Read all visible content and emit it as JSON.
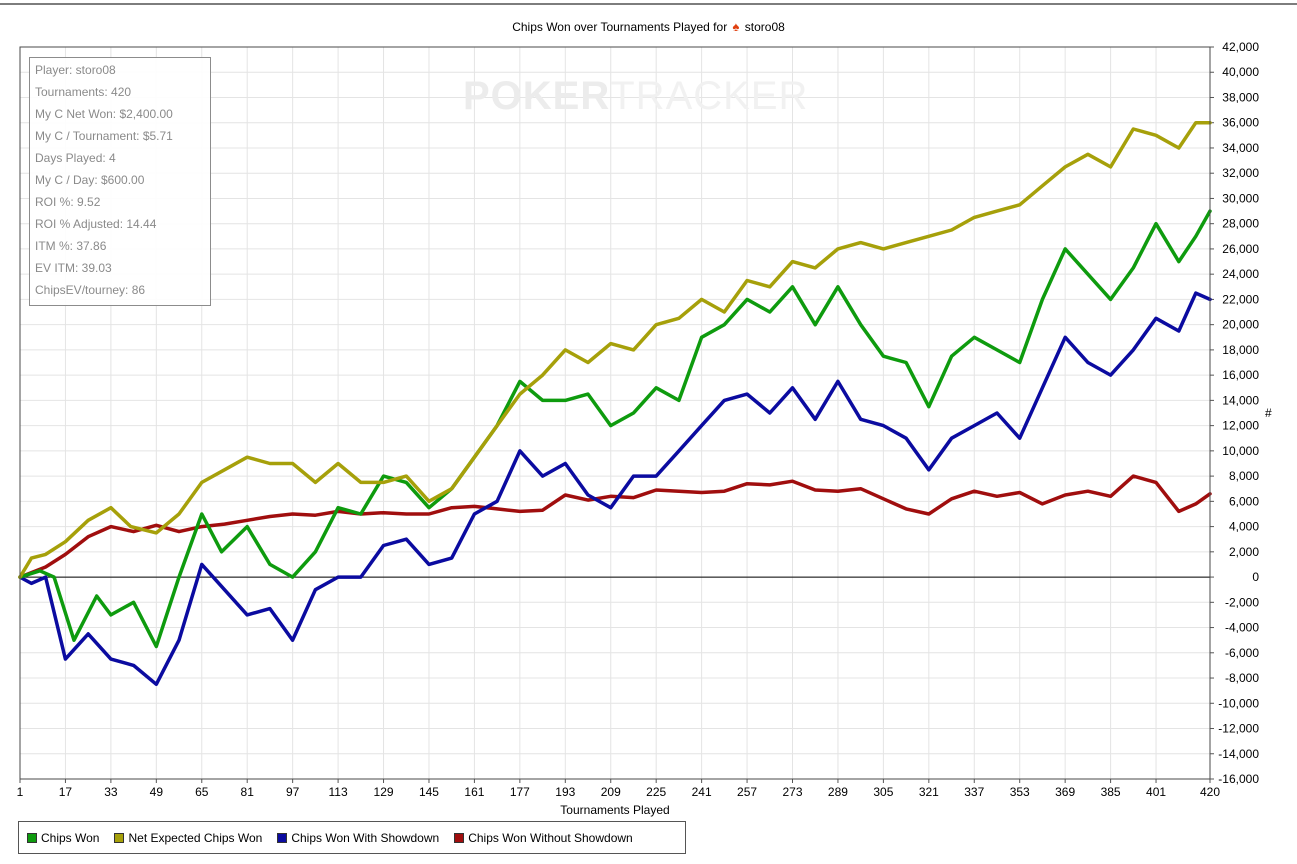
{
  "header": {
    "title": "Chips Won over Tournaments Played for",
    "player": "storo08",
    "icon": "spade-icon"
  },
  "watermark": {
    "bold": "POKER",
    "light": "TRACKER"
  },
  "stats": [
    "Player: storo08",
    "Tournaments: 420",
    "My C Net Won: $2,400.00",
    "My C / Tournament: $5.71",
    "Days Played: 4",
    "My C / Day: $600.00",
    "ROI %: 9.52",
    "ROI % Adjusted: 14.44",
    "ITM %: 37.86",
    "EV ITM: 39.03",
    "ChipsEV/tourney: 86"
  ],
  "chart_data": {
    "type": "line",
    "xlabel": "Tournaments Played",
    "ylabel": "#",
    "xlim": [
      1,
      420
    ],
    "ylim": [
      -16000,
      42000
    ],
    "y_axis_side": "right",
    "grid": true,
    "legend_position": "bottom-left",
    "x_ticks": [
      1,
      17,
      33,
      49,
      65,
      81,
      97,
      113,
      129,
      145,
      161,
      177,
      193,
      209,
      225,
      241,
      257,
      273,
      289,
      305,
      321,
      337,
      353,
      369,
      385,
      401,
      420
    ],
    "y_ticks": [
      -16000,
      -14000,
      -12000,
      -10000,
      -8000,
      -6000,
      -4000,
      -2000,
      0,
      2000,
      4000,
      6000,
      8000,
      10000,
      12000,
      14000,
      16000,
      18000,
      20000,
      22000,
      24000,
      26000,
      28000,
      30000,
      32000,
      34000,
      36000,
      38000,
      40000,
      42000
    ],
    "series": [
      {
        "name": "Net Expected Chips Won",
        "color": "#a6a00a",
        "x": [
          1,
          5,
          10,
          17,
          25,
          33,
          40,
          49,
          57,
          65,
          73,
          81,
          89,
          97,
          105,
          113,
          121,
          129,
          137,
          145,
          153,
          161,
          169,
          177,
          185,
          193,
          201,
          209,
          217,
          225,
          233,
          241,
          249,
          257,
          265,
          273,
          281,
          289,
          297,
          305,
          313,
          321,
          329,
          337,
          345,
          353,
          361,
          369,
          377,
          385,
          393,
          401,
          409,
          415,
          420
        ],
        "values": [
          0,
          1500,
          1800,
          2800,
          4500,
          5500,
          4000,
          3500,
          5000,
          7500,
          8500,
          9500,
          9000,
          9000,
          7500,
          9000,
          7500,
          7500,
          8000,
          6000,
          7000,
          9500,
          12000,
          14500,
          16000,
          18000,
          17000,
          18500,
          18000,
          20000,
          20500,
          22000,
          21000,
          23500,
          23000,
          25000,
          24500,
          26000,
          26500,
          26000,
          26500,
          27000,
          27500,
          28500,
          29000,
          29500,
          31000,
          32500,
          33500,
          32500,
          35500,
          35000,
          34000,
          36000,
          36000
        ]
      },
      {
        "name": "Chips Won",
        "color": "#0e9b0e",
        "x": [
          1,
          8,
          13,
          20,
          28,
          33,
          41,
          49,
          57,
          65,
          72,
          81,
          89,
          97,
          105,
          113,
          121,
          129,
          137,
          145,
          153,
          161,
          169,
          177,
          185,
          193,
          201,
          209,
          217,
          225,
          233,
          241,
          249,
          257,
          265,
          273,
          281,
          289,
          297,
          305,
          313,
          321,
          329,
          337,
          345,
          353,
          361,
          369,
          377,
          385,
          393,
          401,
          409,
          415,
          420
        ],
        "values": [
          0,
          500,
          0,
          -5000,
          -1500,
          -3000,
          -2000,
          -5500,
          0,
          5000,
          2000,
          4000,
          1000,
          0,
          2000,
          5500,
          5000,
          8000,
          7500,
          5500,
          7000,
          9500,
          12000,
          15500,
          14000,
          14000,
          14500,
          12000,
          13000,
          15000,
          14000,
          19000,
          20000,
          22000,
          21000,
          23000,
          20000,
          23000,
          20000,
          17500,
          17000,
          13500,
          17500,
          19000,
          18000,
          17000,
          22000,
          26000,
          24000,
          22000,
          24500,
          28000,
          25000,
          27000,
          29000
        ]
      },
      {
        "name": "Chips Won With Showdown",
        "color": "#0b0ba0",
        "x": [
          1,
          5,
          10,
          17,
          25,
          33,
          41,
          49,
          57,
          65,
          73,
          81,
          89,
          97,
          105,
          113,
          121,
          129,
          137,
          145,
          153,
          161,
          169,
          177,
          185,
          193,
          201,
          209,
          217,
          225,
          233,
          241,
          249,
          257,
          265,
          273,
          281,
          289,
          297,
          305,
          313,
          321,
          329,
          337,
          345,
          353,
          361,
          369,
          377,
          385,
          393,
          401,
          409,
          415,
          420
        ],
        "values": [
          0,
          -500,
          0,
          -6500,
          -4500,
          -6500,
          -7000,
          -8500,
          -5000,
          1000,
          -1000,
          -3000,
          -2500,
          -5000,
          -1000,
          0,
          0,
          2500,
          3000,
          1000,
          1500,
          5000,
          6000,
          10000,
          8000,
          9000,
          6500,
          5500,
          8000,
          8000,
          10000,
          12000,
          14000,
          14500,
          13000,
          15000,
          12500,
          15500,
          12500,
          12000,
          11000,
          8500,
          11000,
          12000,
          13000,
          11000,
          15000,
          19000,
          17000,
          16000,
          18000,
          20500,
          19500,
          22500,
          22000
        ]
      },
      {
        "name": "Chips Won Without Showdown",
        "color": "#a00e0e",
        "x": [
          1,
          10,
          17,
          25,
          33,
          41,
          49,
          57,
          65,
          73,
          81,
          89,
          97,
          105,
          113,
          121,
          129,
          137,
          145,
          153,
          161,
          169,
          177,
          185,
          193,
          201,
          209,
          217,
          225,
          233,
          241,
          249,
          257,
          265,
          273,
          281,
          289,
          297,
          305,
          313,
          321,
          329,
          337,
          345,
          353,
          361,
          369,
          377,
          385,
          393,
          401,
          409,
          415,
          420
        ],
        "values": [
          0,
          800,
          1800,
          3200,
          4000,
          3600,
          4100,
          3600,
          4000,
          4200,
          4500,
          4800,
          5000,
          4900,
          5200,
          5000,
          5100,
          5000,
          5000,
          5500,
          5600,
          5400,
          5200,
          5300,
          6500,
          6100,
          6400,
          6300,
          6900,
          6800,
          6700,
          6800,
          7400,
          7300,
          7600,
          6900,
          6800,
          7000,
          6200,
          5400,
          5000,
          6200,
          6800,
          6400,
          6700,
          5800,
          6500,
          6800,
          6400,
          8000,
          7500,
          5200,
          5800,
          6600
        ]
      }
    ]
  }
}
